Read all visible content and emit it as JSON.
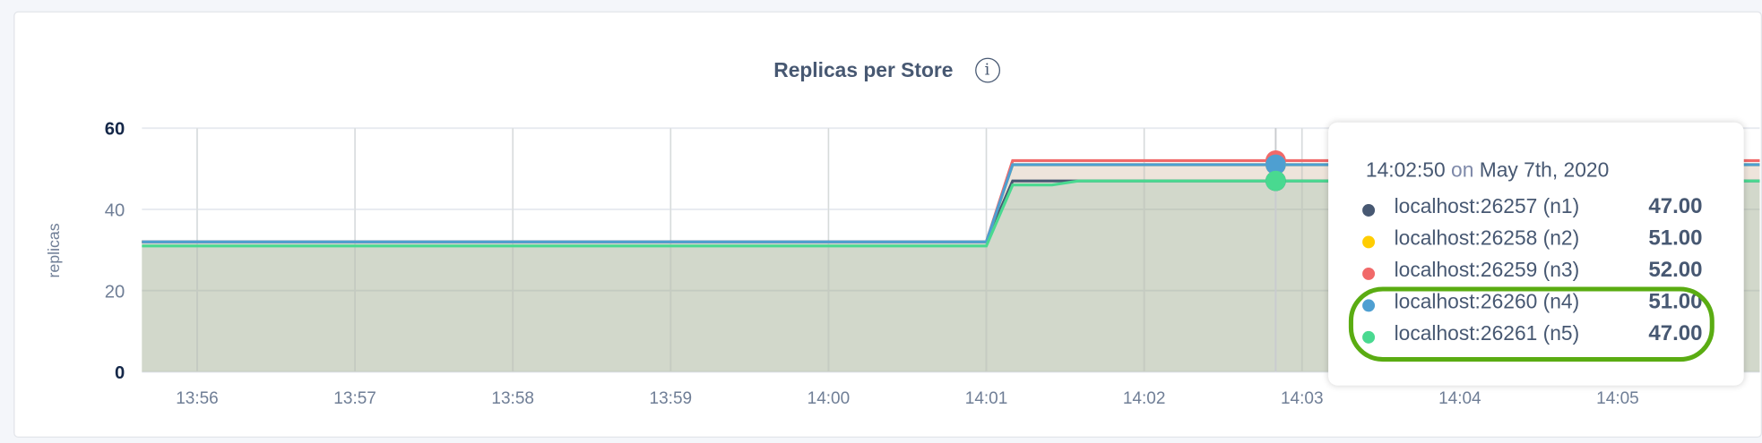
{
  "chart_data": {
    "type": "area",
    "title": "Replicas per Store",
    "ylabel": "replicas",
    "ylim": [
      0,
      60
    ],
    "yticks": [
      "0",
      "20",
      "40",
      "60"
    ],
    "xlim": [
      "13:55:39",
      "14:05:54"
    ],
    "xticks": [
      "13:56",
      "13:57",
      "13:58",
      "13:59",
      "14:00",
      "14:01",
      "14:02",
      "14:03",
      "14:04",
      "14:05"
    ],
    "grid": true,
    "series": [
      {
        "name": "localhost:26257 (n1)",
        "color": "#475872",
        "points": [
          [
            "13:55:39",
            32
          ],
          [
            "14:01:00",
            32
          ],
          [
            "14:01:10",
            47
          ],
          [
            "14:05:54",
            47
          ]
        ]
      },
      {
        "name": "localhost:26258 (n2)",
        "color": "#ffcd02",
        "points": [
          [
            "13:55:39",
            32
          ],
          [
            "14:01:00",
            32
          ],
          [
            "14:01:10",
            51
          ],
          [
            "14:05:54",
            51
          ]
        ]
      },
      {
        "name": "localhost:26259 (n3)",
        "color": "#f16969",
        "points": [
          [
            "13:55:39",
            32
          ],
          [
            "14:01:00",
            32
          ],
          [
            "14:01:10",
            52
          ],
          [
            "14:05:54",
            52
          ]
        ]
      },
      {
        "name": "localhost:26260 (n4)",
        "color": "#4e9fd1",
        "points": [
          [
            "13:55:39",
            32
          ],
          [
            "14:01:00",
            32
          ],
          [
            "14:01:10",
            51
          ],
          [
            "14:05:54",
            51
          ]
        ]
      },
      {
        "name": "localhost:26261 (n5)",
        "color": "#49d990",
        "points": [
          [
            "13:55:39",
            31
          ],
          [
            "14:01:00",
            31
          ],
          [
            "14:01:10",
            46
          ],
          [
            "14:01:25",
            46
          ],
          [
            "14:01:35",
            47
          ],
          [
            "14:05:54",
            47
          ]
        ]
      }
    ],
    "hover": {
      "time": "14:02:50",
      "on": "on",
      "date": "May 7th, 2020",
      "rows": [
        {
          "label": "localhost:26257 (n1)",
          "value": "47.00",
          "color": "#475872"
        },
        {
          "label": "localhost:26258 (n2)",
          "value": "51.00",
          "color": "#ffcd02"
        },
        {
          "label": "localhost:26259 (n3)",
          "value": "52.00",
          "color": "#f16969"
        },
        {
          "label": "localhost:26260 (n4)",
          "value": "51.00",
          "color": "#4e9fd1"
        },
        {
          "label": "localhost:26261 (n5)",
          "value": "47.00",
          "color": "#49d990"
        }
      ]
    }
  },
  "info_icon": "info-icon",
  "annotation_color": "#5aac12"
}
